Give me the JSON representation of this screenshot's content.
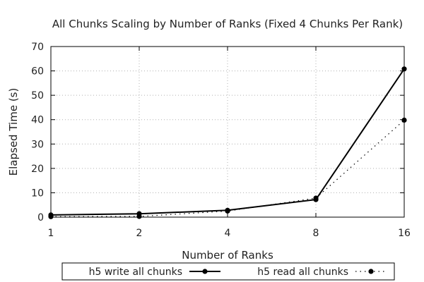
{
  "chart_data": {
    "type": "line",
    "title": "All Chunks Scaling by Number of Ranks (Fixed 4 Chunks Per Rank)",
    "xlabel": "Number of Ranks",
    "ylabel": "Elapsed Time (s)",
    "x_scale": "log2",
    "x": [
      1,
      2,
      4,
      8,
      16
    ],
    "x_tick_labels": [
      "1",
      "2",
      "4",
      "8",
      "16"
    ],
    "ylim": [
      0,
      70
    ],
    "y_ticks": [
      0,
      10,
      20,
      30,
      40,
      50,
      60,
      70
    ],
    "grid": true,
    "legend_position": "bottom",
    "series": [
      {
        "name": "h5 write all chunks",
        "values": [
          0.9,
          1.4,
          2.8,
          7.2,
          60.8
        ],
        "line_style": "solid",
        "color": "#000000"
      },
      {
        "name": "h5 read all chunks",
        "values": [
          0.2,
          0.3,
          2.5,
          7.8,
          39.8
        ],
        "line_style": "dotted",
        "color": "#000000"
      }
    ]
  }
}
